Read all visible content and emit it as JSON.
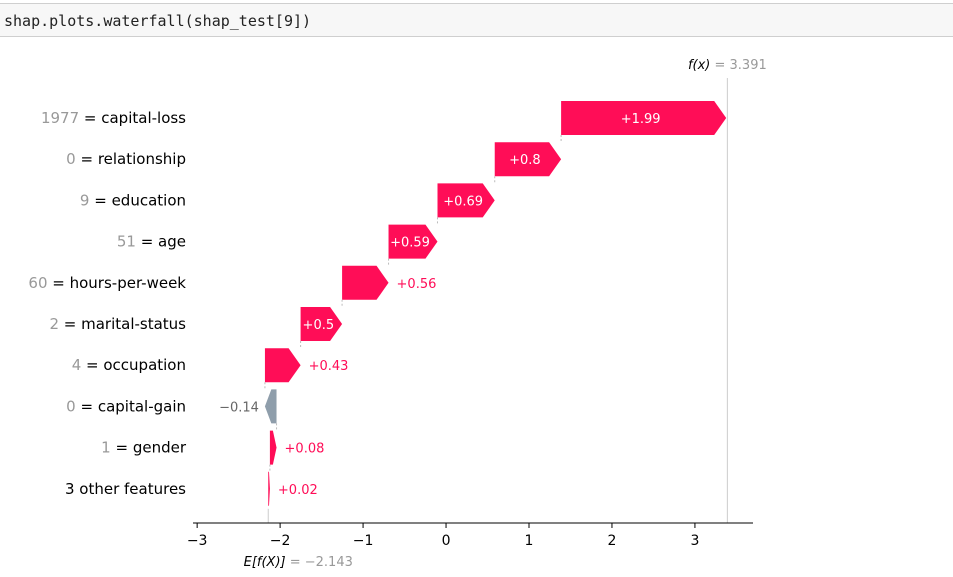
{
  "code": {
    "text": "shap.plots.waterfall(shap_test[9])"
  },
  "chart_data": {
    "type": "waterfall",
    "base_value": -2.143,
    "base_label": "E[f(X)] = −2.143",
    "fx_value": 3.391,
    "fx_label_fn": "f(x)",
    "fx_label_val": " = 3.391",
    "base_label_fn": "E[f(X)]",
    "base_label_val": " = −2.143",
    "xlim": [
      -3.05,
      3.7
    ],
    "xticks": [
      -3,
      -2,
      -1,
      0,
      1,
      2,
      3
    ],
    "xtick_labels": [
      "−3",
      "−2",
      "−1",
      "0",
      "1",
      "2",
      "3"
    ],
    "features": [
      {
        "value": "1977",
        "name": "capital-loss",
        "shap": 1.99,
        "label": "+1.99"
      },
      {
        "value": "0",
        "name": "relationship",
        "shap": 0.8,
        "label": "+0.8"
      },
      {
        "value": "9",
        "name": "education",
        "shap": 0.69,
        "label": "+0.69"
      },
      {
        "value": "51",
        "name": "age",
        "shap": 0.59,
        "label": "+0.59"
      },
      {
        "value": "60",
        "name": "hours-per-week",
        "shap": 0.56,
        "label": "+0.56"
      },
      {
        "value": "2",
        "name": "marital-status",
        "shap": 0.5,
        "label": "+0.5"
      },
      {
        "value": "4",
        "name": "occupation",
        "shap": 0.43,
        "label": "+0.43"
      },
      {
        "value": "0",
        "name": "capital-gain",
        "shap": -0.14,
        "label": "−0.14"
      },
      {
        "value": "1",
        "name": "gender",
        "shap": 0.08,
        "label": "+0.08"
      },
      {
        "value": "",
        "name": "3 other features",
        "shap": 0.02,
        "label": "+0.02"
      }
    ],
    "colors": {
      "positive": "#ff0d57",
      "negative": "#8f9eab",
      "value_gray": "#999999",
      "axis": "#000000"
    }
  }
}
